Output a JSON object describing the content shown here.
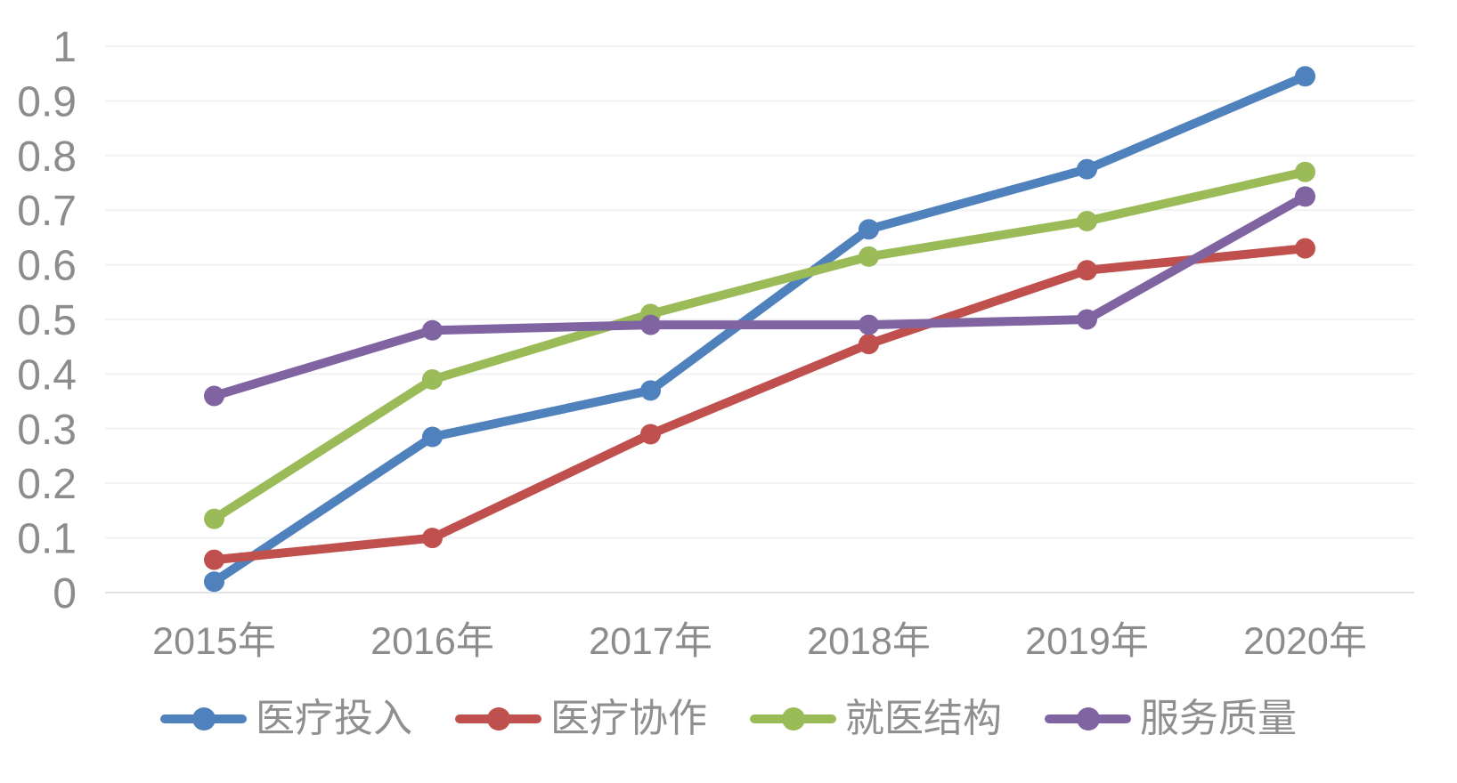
{
  "chart_data": {
    "type": "line",
    "title": "",
    "xlabel": "",
    "ylabel": "",
    "categories": [
      "2015年",
      "2016年",
      "2017年",
      "2018年",
      "2019年",
      "2020年"
    ],
    "series": [
      {
        "name": "医疗投入",
        "color": "#4F81BD",
        "values": [
          0.02,
          0.285,
          0.37,
          0.665,
          0.775,
          0.945
        ]
      },
      {
        "name": "医疗协作",
        "color": "#C0504D",
        "values": [
          0.06,
          0.1,
          0.29,
          0.455,
          0.59,
          0.63
        ]
      },
      {
        "name": "就医结构",
        "color": "#9BBB59",
        "values": [
          0.135,
          0.39,
          0.51,
          0.615,
          0.68,
          0.77
        ]
      },
      {
        "name": "服务质量",
        "color": "#8064A2",
        "values": [
          0.36,
          0.48,
          0.49,
          0.49,
          0.5,
          0.725
        ]
      }
    ],
    "ylim": [
      0,
      1
    ],
    "ytick_step": 0.1,
    "ytick_labels": [
      "0",
      "0.1",
      "0.2",
      "0.3",
      "0.4",
      "0.5",
      "0.6",
      "0.7",
      "0.8",
      "0.9",
      "1"
    ],
    "grid": true,
    "legend_position": "bottom"
  },
  "style": {
    "background": "#FFFFFF",
    "gridline_color": "#F2F2F2",
    "axis_line_color": "#E2E2E2",
    "tick_label_color": "#8C8C8C",
    "legend_text_color": "#8F8F8F"
  }
}
